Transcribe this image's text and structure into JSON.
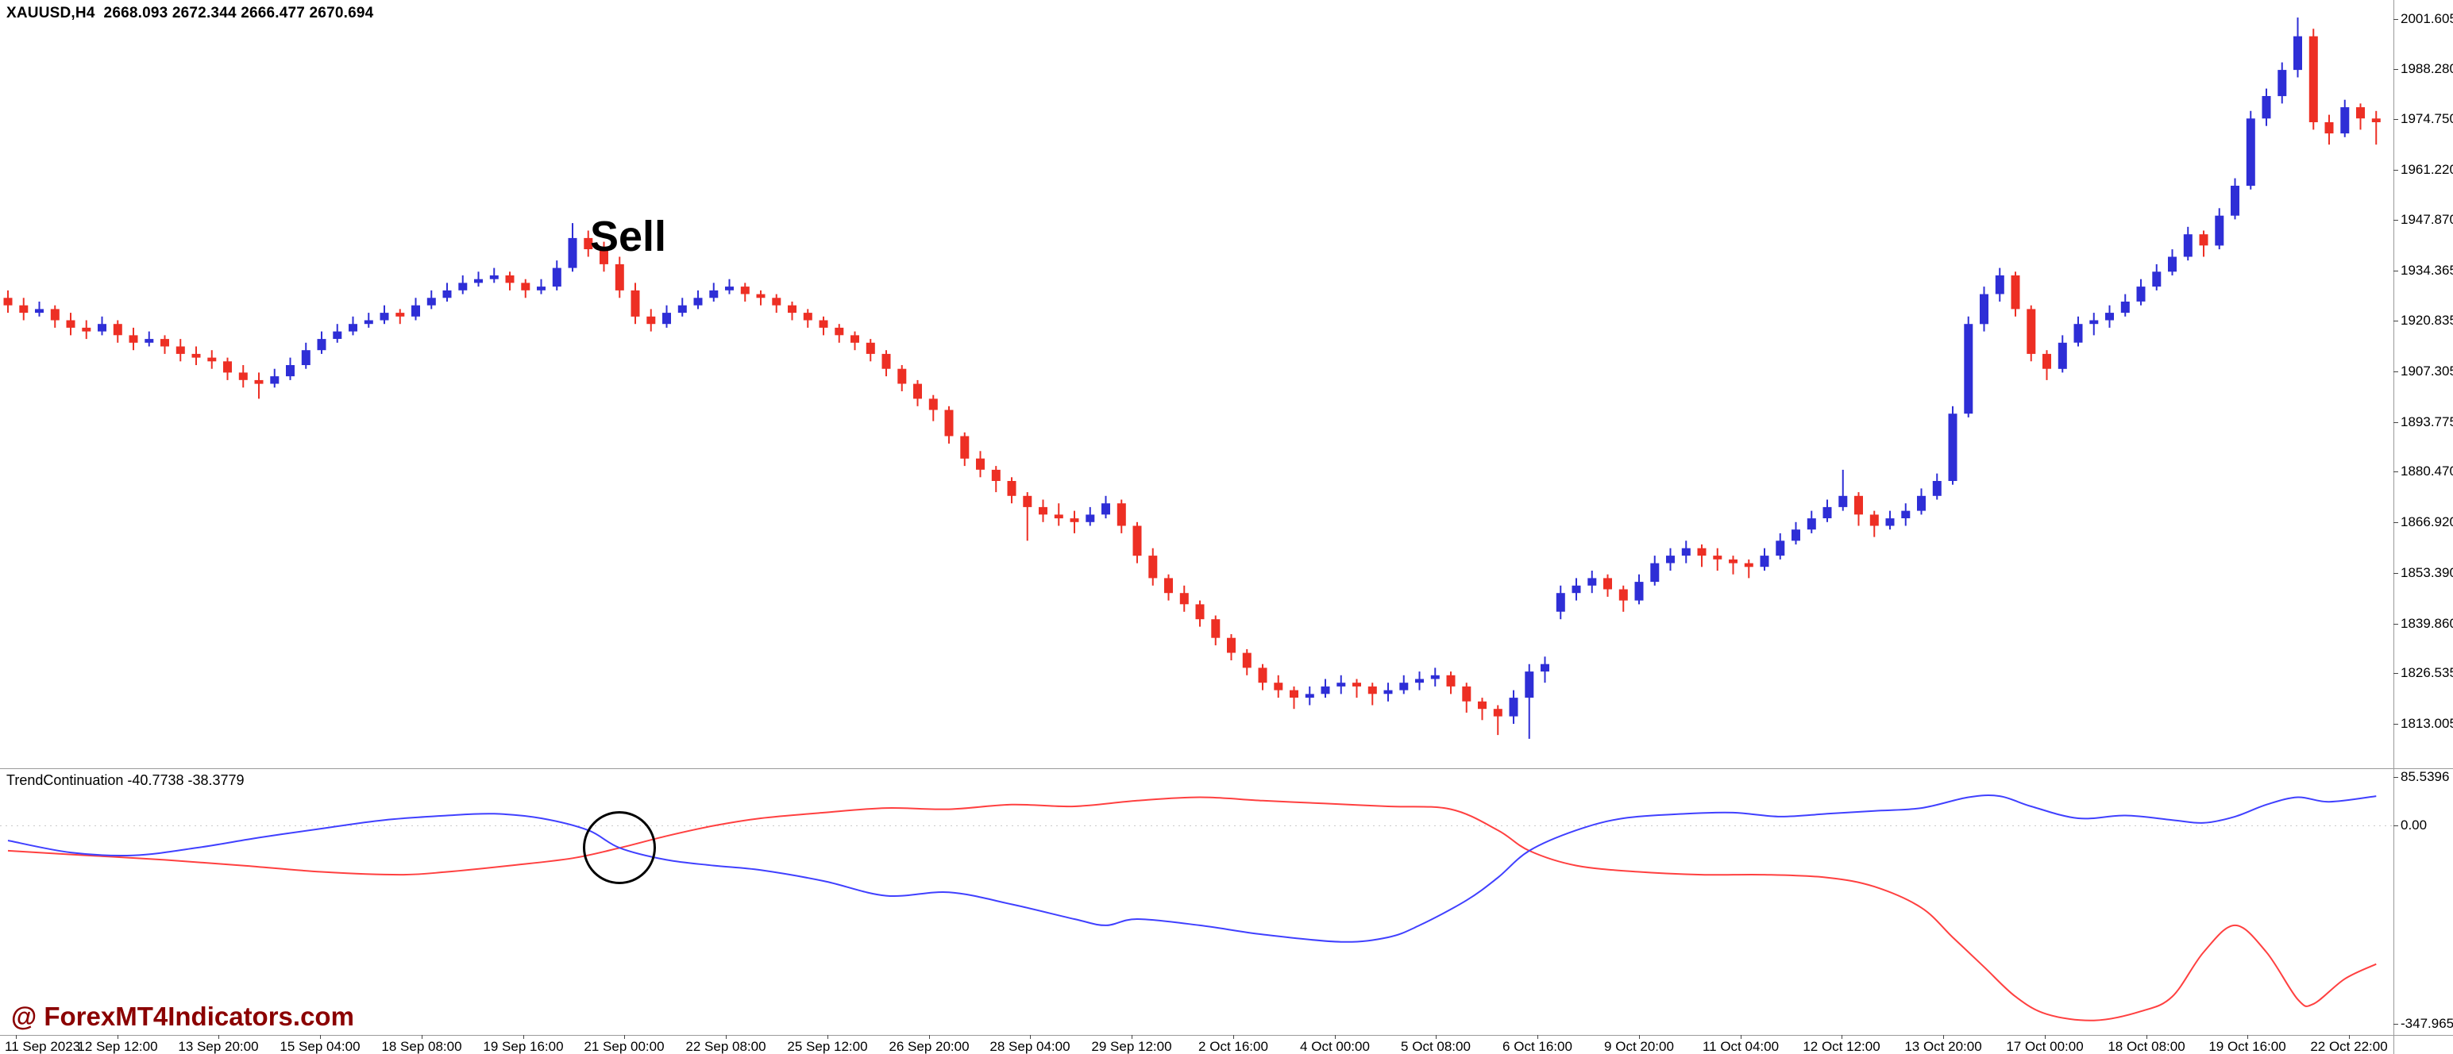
{
  "info_bar": "XAUUSD,H4  2668.093 2672.344 2666.477 2670.694",
  "indicator_label": "TrendContinuation -40.7738 -38.3779",
  "annotations": {
    "sell_label": "Sell",
    "watermark": "@ ForexMT4Indicators.com"
  },
  "colors": {
    "up_candle": "#2E2ED6",
    "down_candle": "#ED2F24",
    "indicator_red": "#FF4040",
    "indicator_blue": "#4040FF",
    "watermark": "#8B0000",
    "zero_line": "#C8C8C8"
  },
  "chart_data": {
    "type": "candlestick",
    "title": "XAUUSD,H4",
    "symbol": "XAUUSD",
    "timeframe": "H4",
    "grid": false,
    "price_axis": {
      "max": 2001.605,
      "min": 1813.005,
      "tick_labels": [
        "2001.605",
        "1988.280",
        "1974.750",
        "1961.220",
        "1947.870",
        "1934.365",
        "1920.835",
        "1907.305",
        "1893.775",
        "1880.470",
        "1866.920",
        "1853.390",
        "1839.860",
        "1826.535",
        "1813.005"
      ]
    },
    "time_axis": {
      "tick_labels": [
        "11 Sep 2023",
        "12 Sep 12:00",
        "13 Sep 20:00",
        "15 Sep 04:00",
        "18 Sep 08:00",
        "19 Sep 16:00",
        "21 Sep 00:00",
        "22 Sep 08:00",
        "25 Sep 12:00",
        "26 Sep 20:00",
        "28 Sep 04:00",
        "29 Sep 12:00",
        "2 Oct 16:00",
        "4 Oct 00:00",
        "5 Oct 08:00",
        "6 Oct 16:00",
        "9 Oct 20:00",
        "11 Oct 04:00",
        "12 Oct 12:00",
        "13 Oct 20:00",
        "17 Oct 00:00",
        "18 Oct 08:00",
        "19 Oct 16:00",
        "22 Oct 22:00"
      ]
    },
    "candles_ohlc": [
      [
        1927,
        1929,
        1923,
        1925
      ],
      [
        1925,
        1927,
        1921,
        1923
      ],
      [
        1923,
        1926,
        1922,
        1924
      ],
      [
        1924,
        1925,
        1919,
        1921
      ],
      [
        1921,
        1923,
        1917,
        1919
      ],
      [
        1919,
        1921,
        1916,
        1918
      ],
      [
        1918,
        1922,
        1917,
        1920
      ],
      [
        1920,
        1921,
        1915,
        1917
      ],
      [
        1917,
        1919,
        1913,
        1915
      ],
      [
        1915,
        1918,
        1914,
        1916
      ],
      [
        1916,
        1917,
        1912,
        1914
      ],
      [
        1914,
        1916,
        1910,
        1912
      ],
      [
        1912,
        1914,
        1909,
        1911
      ],
      [
        1911,
        1913,
        1908,
        1910
      ],
      [
        1910,
        1911,
        1905,
        1907
      ],
      [
        1907,
        1909,
        1903,
        1905
      ],
      [
        1905,
        1907,
        1900,
        1904
      ],
      [
        1904,
        1908,
        1903,
        1906
      ],
      [
        1906,
        1911,
        1905,
        1909
      ],
      [
        1909,
        1915,
        1908,
        1913
      ],
      [
        1913,
        1918,
        1912,
        1916
      ],
      [
        1916,
        1920,
        1915,
        1918
      ],
      [
        1918,
        1922,
        1917,
        1920
      ],
      [
        1920,
        1923,
        1919,
        1921
      ],
      [
        1921,
        1925,
        1920,
        1923
      ],
      [
        1923,
        1924,
        1920,
        1922
      ],
      [
        1922,
        1927,
        1921,
        1925
      ],
      [
        1925,
        1929,
        1924,
        1927
      ],
      [
        1927,
        1931,
        1926,
        1929
      ],
      [
        1929,
        1933,
        1928,
        1931
      ],
      [
        1931,
        1934,
        1930,
        1932
      ],
      [
        1932,
        1935,
        1931,
        1933
      ],
      [
        1933,
        1934,
        1929,
        1931
      ],
      [
        1931,
        1932,
        1927,
        1929
      ],
      [
        1929,
        1932,
        1928,
        1930
      ],
      [
        1930,
        1937,
        1929,
        1935
      ],
      [
        1935,
        1947,
        1934,
        1943
      ],
      [
        1943,
        1945,
        1938,
        1940
      ],
      [
        1940,
        1942,
        1934,
        1936
      ],
      [
        1936,
        1938,
        1927,
        1929
      ],
      [
        1929,
        1931,
        1920,
        1922
      ],
      [
        1922,
        1924,
        1918,
        1920
      ],
      [
        1920,
        1925,
        1919,
        1923
      ],
      [
        1923,
        1927,
        1922,
        1925
      ],
      [
        1925,
        1929,
        1924,
        1927
      ],
      [
        1927,
        1931,
        1926,
        1929
      ],
      [
        1929,
        1932,
        1928,
        1930
      ],
      [
        1930,
        1931,
        1926,
        1928
      ],
      [
        1928,
        1929,
        1925,
        1927
      ],
      [
        1927,
        1928,
        1923,
        1925
      ],
      [
        1925,
        1926,
        1921,
        1923
      ],
      [
        1923,
        1924,
        1919,
        1921
      ],
      [
        1921,
        1922,
        1917,
        1919
      ],
      [
        1919,
        1920,
        1915,
        1917
      ],
      [
        1917,
        1918,
        1913,
        1915
      ],
      [
        1915,
        1916,
        1910,
        1912
      ],
      [
        1912,
        1913,
        1906,
        1908
      ],
      [
        1908,
        1909,
        1902,
        1904
      ],
      [
        1904,
        1905,
        1898,
        1900
      ],
      [
        1900,
        1901,
        1894,
        1897
      ],
      [
        1897,
        1898,
        1888,
        1890
      ],
      [
        1890,
        1891,
        1882,
        1884
      ],
      [
        1884,
        1886,
        1879,
        1881
      ],
      [
        1881,
        1882,
        1875,
        1878
      ],
      [
        1878,
        1879,
        1872,
        1874
      ],
      [
        1874,
        1875,
        1862,
        1871
      ],
      [
        1871,
        1873,
        1867,
        1869
      ],
      [
        1869,
        1872,
        1866,
        1868
      ],
      [
        1868,
        1870,
        1864,
        1867
      ],
      [
        1867,
        1871,
        1866,
        1869
      ],
      [
        1869,
        1874,
        1868,
        1872
      ],
      [
        1872,
        1873,
        1864,
        1866
      ],
      [
        1866,
        1867,
        1856,
        1858
      ],
      [
        1858,
        1860,
        1850,
        1852
      ],
      [
        1852,
        1853,
        1846,
        1848
      ],
      [
        1848,
        1850,
        1843,
        1845
      ],
      [
        1845,
        1846,
        1839,
        1841
      ],
      [
        1841,
        1842,
        1834,
        1836
      ],
      [
        1836,
        1837,
        1830,
        1832
      ],
      [
        1832,
        1833,
        1826,
        1828
      ],
      [
        1828,
        1829,
        1822,
        1824
      ],
      [
        1824,
        1826,
        1820,
        1822
      ],
      [
        1822,
        1823,
        1817,
        1820
      ],
      [
        1820,
        1823,
        1818,
        1821
      ],
      [
        1821,
        1825,
        1820,
        1823
      ],
      [
        1823,
        1826,
        1821,
        1824
      ],
      [
        1824,
        1825,
        1820,
        1823
      ],
      [
        1823,
        1824,
        1818,
        1821
      ],
      [
        1821,
        1824,
        1819,
        1822
      ],
      [
        1822,
        1826,
        1821,
        1824
      ],
      [
        1824,
        1827,
        1822,
        1825
      ],
      [
        1825,
        1828,
        1823,
        1826
      ],
      [
        1826,
        1827,
        1821,
        1823
      ],
      [
        1823,
        1824,
        1816,
        1819
      ],
      [
        1819,
        1820,
        1814,
        1817
      ],
      [
        1817,
        1818,
        1810,
        1815
      ],
      [
        1815,
        1822,
        1813,
        1820
      ],
      [
        1820,
        1829,
        1809,
        1827
      ],
      [
        1827,
        1831,
        1824,
        1829
      ],
      [
        1843,
        1850,
        1841,
        1848
      ],
      [
        1848,
        1852,
        1846,
        1850
      ],
      [
        1850,
        1854,
        1848,
        1852
      ],
      [
        1852,
        1853,
        1847,
        1849
      ],
      [
        1849,
        1850,
        1843,
        1846
      ],
      [
        1846,
        1853,
        1845,
        1851
      ],
      [
        1851,
        1858,
        1850,
        1856
      ],
      [
        1856,
        1860,
        1854,
        1858
      ],
      [
        1858,
        1862,
        1856,
        1860
      ],
      [
        1860,
        1861,
        1855,
        1858
      ],
      [
        1858,
        1860,
        1854,
        1857
      ],
      [
        1857,
        1858,
        1853,
        1856
      ],
      [
        1856,
        1857,
        1852,
        1855
      ],
      [
        1855,
        1860,
        1854,
        1858
      ],
      [
        1858,
        1864,
        1857,
        1862
      ],
      [
        1862,
        1867,
        1861,
        1865
      ],
      [
        1865,
        1870,
        1864,
        1868
      ],
      [
        1868,
        1873,
        1867,
        1871
      ],
      [
        1871,
        1881,
        1870,
        1874
      ],
      [
        1874,
        1875,
        1866,
        1869
      ],
      [
        1869,
        1870,
        1863,
        1866
      ],
      [
        1866,
        1870,
        1865,
        1868
      ],
      [
        1868,
        1872,
        1866,
        1870
      ],
      [
        1870,
        1876,
        1869,
        1874
      ],
      [
        1874,
        1880,
        1873,
        1878
      ],
      [
        1878,
        1898,
        1877,
        1896
      ],
      [
        1896,
        1922,
        1895,
        1920
      ],
      [
        1920,
        1930,
        1918,
        1928
      ],
      [
        1928,
        1935,
        1926,
        1933
      ],
      [
        1933,
        1934,
        1922,
        1924
      ],
      [
        1924,
        1925,
        1910,
        1912
      ],
      [
        1912,
        1913,
        1905,
        1908
      ],
      [
        1908,
        1917,
        1907,
        1915
      ],
      [
        1915,
        1922,
        1914,
        1920
      ],
      [
        1920,
        1923,
        1917,
        1921
      ],
      [
        1921,
        1925,
        1919,
        1923
      ],
      [
        1923,
        1928,
        1922,
        1926
      ],
      [
        1926,
        1932,
        1925,
        1930
      ],
      [
        1930,
        1936,
        1929,
        1934
      ],
      [
        1934,
        1940,
        1933,
        1938
      ],
      [
        1938,
        1946,
        1937,
        1944
      ],
      [
        1944,
        1945,
        1938,
        1941
      ],
      [
        1941,
        1951,
        1940,
        1949
      ],
      [
        1949,
        1959,
        1948,
        1957
      ],
      [
        1957,
        1977,
        1956,
        1975
      ],
      [
        1975,
        1983,
        1973,
        1981
      ],
      [
        1981,
        1990,
        1979,
        1988
      ],
      [
        1988,
        2002,
        1986,
        1997
      ],
      [
        1997,
        1999,
        1972,
        1974
      ],
      [
        1974,
        1976,
        1968,
        1971
      ],
      [
        1971,
        1980,
        1970,
        1978
      ],
      [
        1978,
        1979,
        1972,
        1975
      ],
      [
        1975,
        1977,
        1968,
        1974
      ]
    ],
    "indicator": {
      "name": "TrendContinuation",
      "display_values": "-40.7738 -38.3779",
      "axis": {
        "max": 85.5396,
        "zero": 0.0,
        "min": -347.9653,
        "tick_labels": [
          "85.5396",
          "0.00",
          "-347.9653"
        ]
      },
      "series": [
        {
          "name": "red-line",
          "color_key": "indicator_red",
          "points": [
            [
              0,
              -44
            ],
            [
              5,
              -52
            ],
            [
              10,
              -60
            ],
            [
              15,
              -70
            ],
            [
              20,
              -81
            ],
            [
              25,
              -86
            ],
            [
              28,
              -81
            ],
            [
              32,
              -70
            ],
            [
              36,
              -57
            ],
            [
              39,
              -39
            ],
            [
              42,
              -18
            ],
            [
              45,
              0
            ],
            [
              48,
              13
            ],
            [
              52,
              23
            ],
            [
              56,
              31
            ],
            [
              60,
              29
            ],
            [
              64,
              37
            ],
            [
              68,
              34
            ],
            [
              72,
              44
            ],
            [
              76,
              50
            ],
            [
              80,
              44
            ],
            [
              84,
              39
            ],
            [
              88,
              34
            ],
            [
              92,
              29
            ],
            [
              95,
              -8
            ],
            [
              97,
              -44
            ],
            [
              100,
              -70
            ],
            [
              104,
              -81
            ],
            [
              108,
              -86
            ],
            [
              112,
              -86
            ],
            [
              116,
              -91
            ],
            [
              119,
              -107
            ],
            [
              122,
              -144
            ],
            [
              124,
              -196
            ],
            [
              126,
              -248
            ],
            [
              128,
              -300
            ],
            [
              130,
              -331
            ],
            [
              133,
              -342
            ],
            [
              136,
              -326
            ],
            [
              138,
              -300
            ],
            [
              140,
              -222
            ],
            [
              142,
              -175
            ],
            [
              144,
              -222
            ],
            [
              146,
              -305
            ],
            [
              147,
              -313
            ],
            [
              149,
              -269
            ],
            [
              151,
              -243
            ]
          ]
        },
        {
          "name": "blue-line",
          "color_key": "indicator_blue",
          "points": [
            [
              0,
              -26
            ],
            [
              4,
              -47
            ],
            [
              8,
              -52
            ],
            [
              12,
              -39
            ],
            [
              16,
              -21
            ],
            [
              20,
              -5
            ],
            [
              24,
              10
            ],
            [
              28,
              18
            ],
            [
              31,
              21
            ],
            [
              34,
              13
            ],
            [
              37,
              -8
            ],
            [
              39,
              -39
            ],
            [
              42,
              -60
            ],
            [
              45,
              -70
            ],
            [
              48,
              -78
            ],
            [
              52,
              -97
            ],
            [
              56,
              -123
            ],
            [
              60,
              -117
            ],
            [
              64,
              -138
            ],
            [
              68,
              -164
            ],
            [
              70,
              -175
            ],
            [
              72,
              -164
            ],
            [
              76,
              -175
            ],
            [
              80,
              -191
            ],
            [
              85,
              -204
            ],
            [
              88,
              -196
            ],
            [
              90,
              -175
            ],
            [
              93,
              -131
            ],
            [
              95,
              -91
            ],
            [
              97,
              -44
            ],
            [
              100,
              -8
            ],
            [
              103,
              13
            ],
            [
              107,
              21
            ],
            [
              110,
              23
            ],
            [
              113,
              16
            ],
            [
              116,
              21
            ],
            [
              119,
              26
            ],
            [
              122,
              31
            ],
            [
              125,
              50
            ],
            [
              127,
              52
            ],
            [
              129,
              34
            ],
            [
              132,
              13
            ],
            [
              135,
              18
            ],
            [
              138,
              10
            ],
            [
              140,
              5
            ],
            [
              142,
              16
            ],
            [
              144,
              37
            ],
            [
              146,
              50
            ],
            [
              148,
              42
            ],
            [
              151,
              52
            ]
          ]
        }
      ]
    },
    "chart_annotations": [
      {
        "type": "text",
        "text": "Sell",
        "candle_index": 36,
        "price": 1948
      },
      {
        "type": "circle",
        "pane": "indicator",
        "candle_index": 39,
        "value": -39,
        "radius_px": 46
      }
    ]
  }
}
